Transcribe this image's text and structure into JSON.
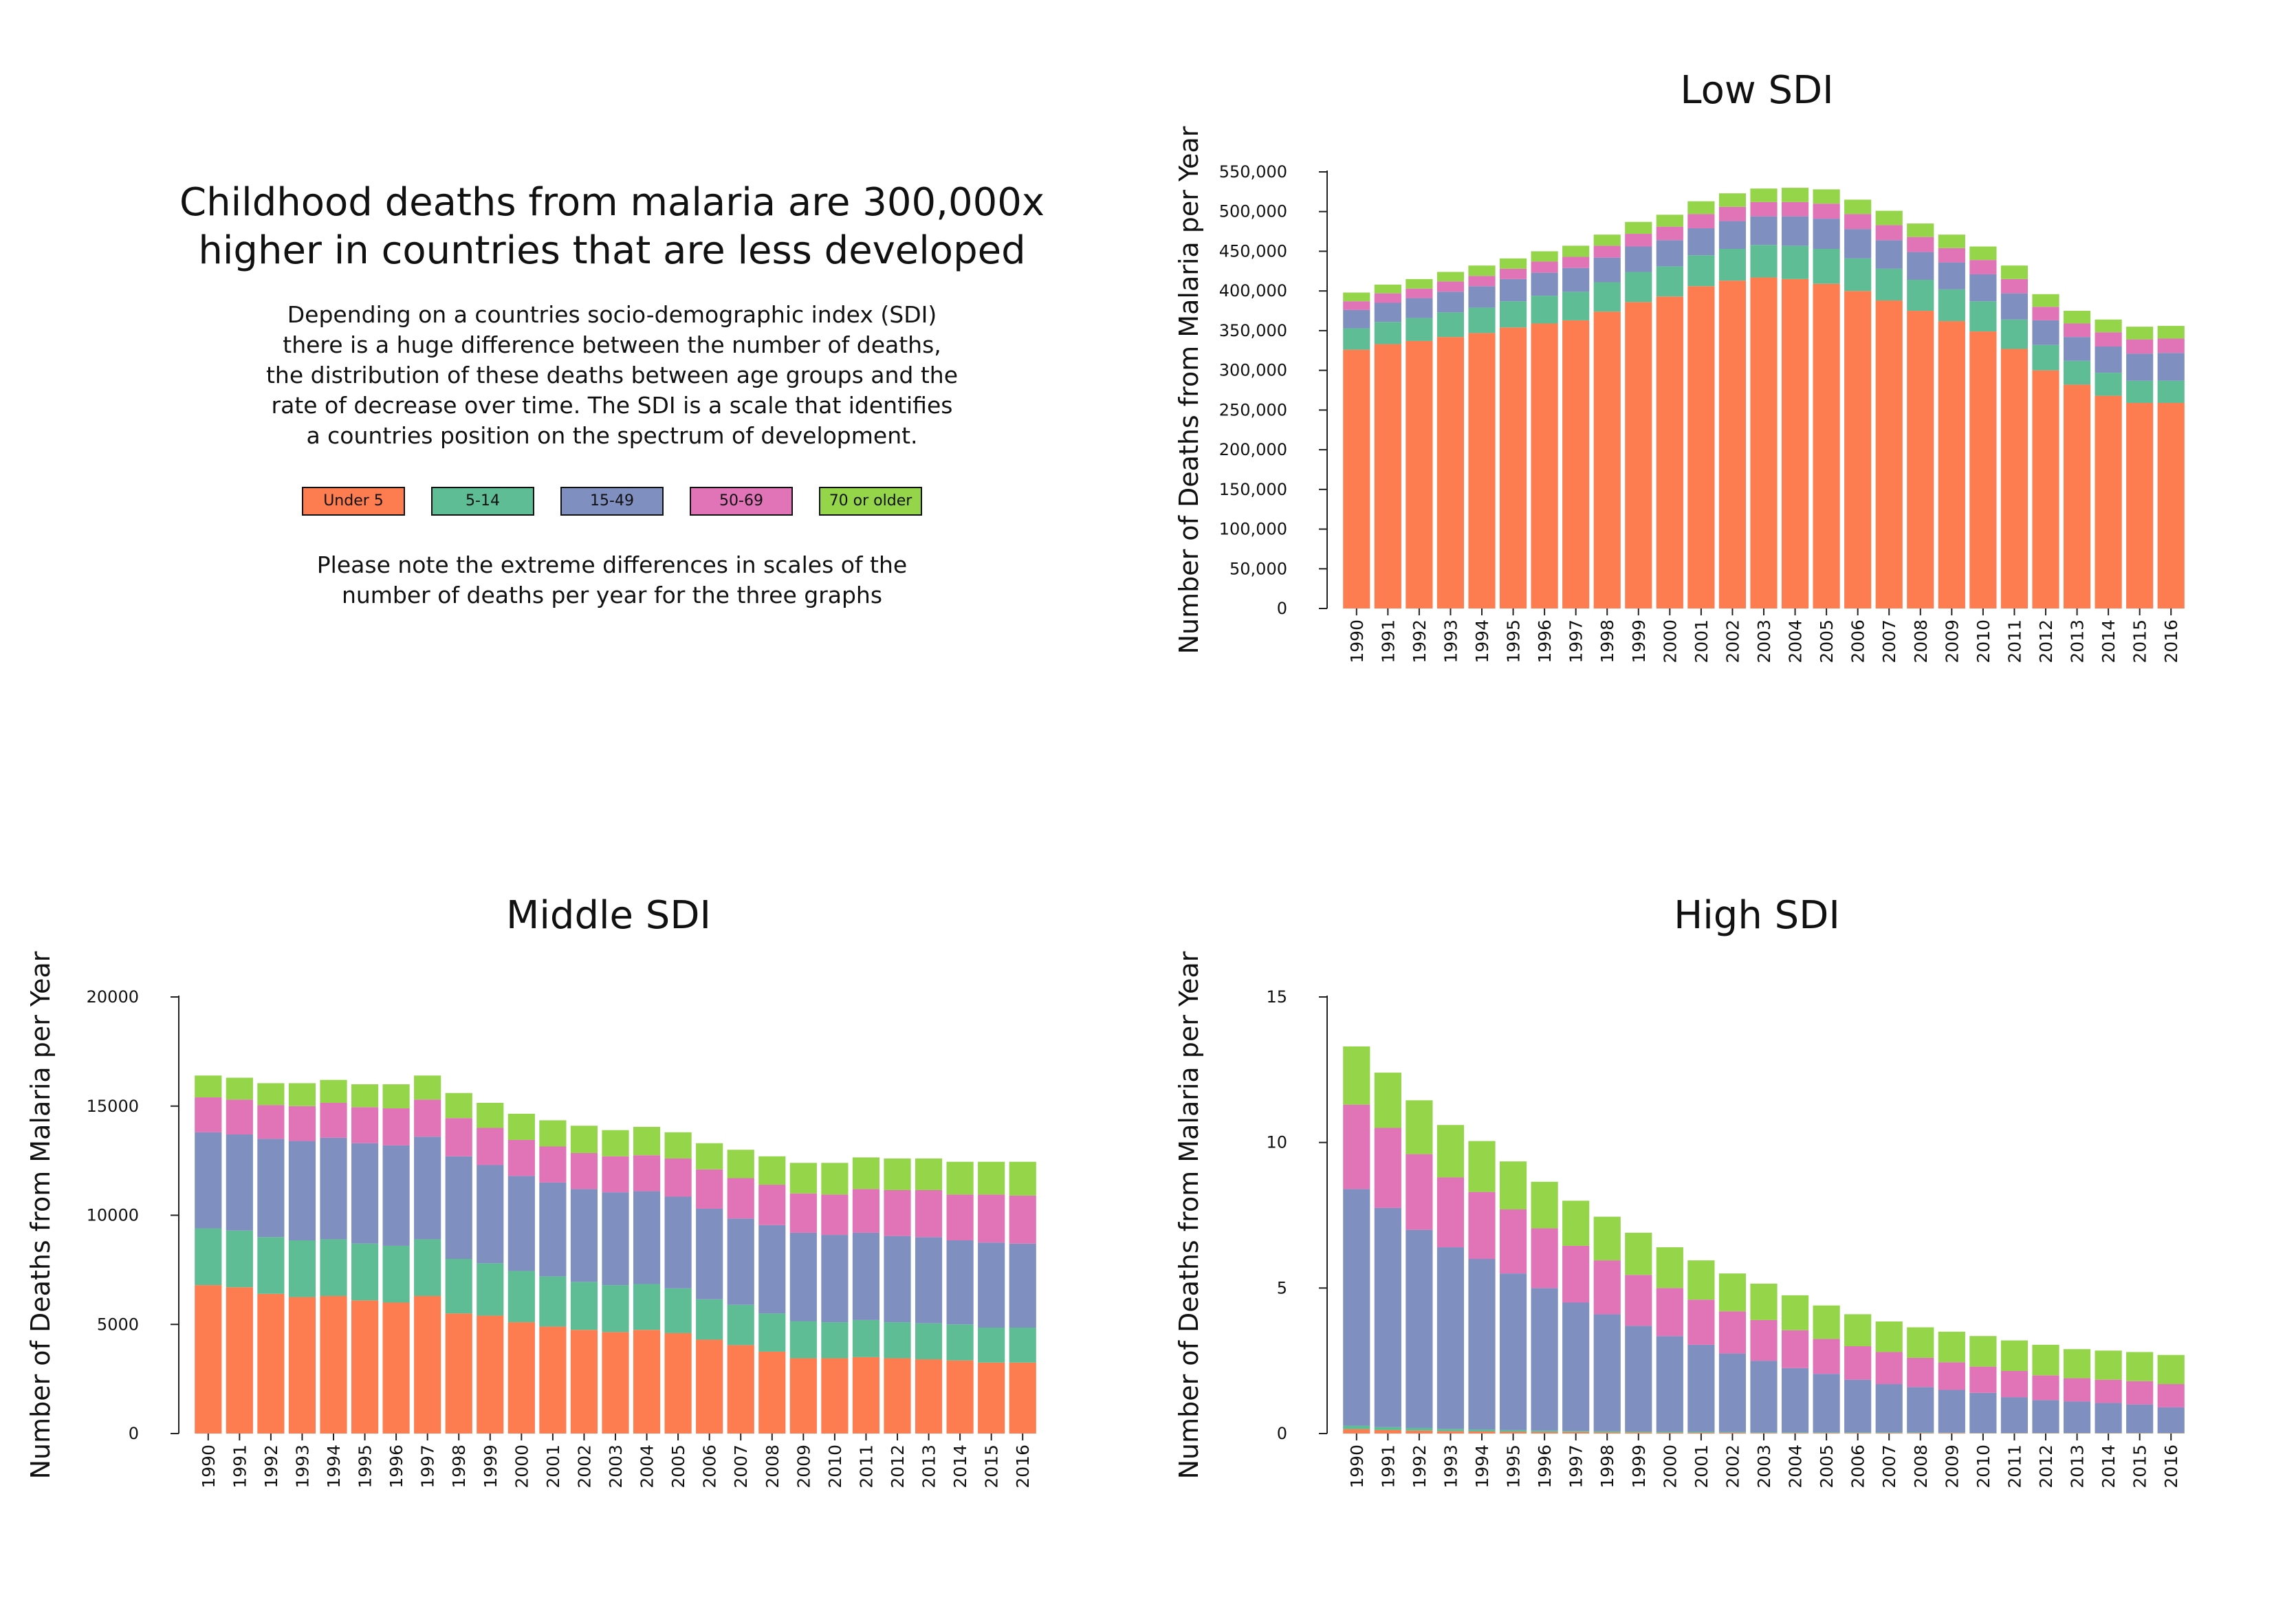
{
  "intro": {
    "title_line1": "Childhood deaths from malaria are 300,000x",
    "title_line2": "higher in countries that are less developed",
    "desc_lines": [
      "Depending on a countries socio-demographic index (SDI)",
      "there is a huge difference between the number of deaths,",
      "the distribution of these deaths between age groups and the",
      "rate of decrease over time. The SDI is a scale that identifies",
      "a countries position on the spectrum of development."
    ],
    "note_lines": [
      "Please note the extreme differences in scales of the",
      "number of deaths per year for the three graphs"
    ]
  },
  "legend": [
    {
      "label": "Under 5",
      "color": "#fd7d51"
    },
    {
      "label": "5-14",
      "color": "#5ebd94"
    },
    {
      "label": "15-49",
      "color": "#7e8fc0"
    },
    {
      "label": "50-69",
      "color": "#e173b7"
    },
    {
      "label": "70 or older",
      "color": "#94d54a"
    }
  ],
  "chart_data": [
    {
      "type": "bar",
      "stacked": true,
      "title": "Low SDI",
      "ylabel": "Number of Deaths from Malaria per Year",
      "ylim": [
        0,
        550000
      ],
      "yticks": [
        0,
        50000,
        100000,
        150000,
        200000,
        250000,
        300000,
        350000,
        400000,
        450000,
        500000,
        550000
      ],
      "ytick_labels": [
        "0",
        "50,000",
        "100,000",
        "150,000",
        "200,000",
        "250,000",
        "300,000",
        "350,000",
        "400,000",
        "450,000",
        "500,000",
        "550,000"
      ],
      "categories": [
        "1990",
        "1991",
        "1992",
        "1993",
        "1994",
        "1995",
        "1996",
        "1997",
        "1998",
        "1999",
        "2000",
        "2001",
        "2002",
        "2003",
        "2004",
        "2005",
        "2006",
        "2007",
        "2008",
        "2009",
        "2010",
        "2011",
        "2012",
        "2013",
        "2014",
        "2015",
        "2016"
      ],
      "series": [
        {
          "name": "Under 5",
          "values": [
            326000,
            333000,
            337000,
            342000,
            347000,
            354000,
            359000,
            363000,
            374000,
            386000,
            393000,
            406000,
            413000,
            417000,
            415000,
            409000,
            400000,
            388000,
            375000,
            362000,
            349000,
            327000,
            300000,
            282000,
            268000,
            259000,
            259000
          ]
        },
        {
          "name": "5-14",
          "values": [
            27000,
            28000,
            29000,
            31000,
            32000,
            33000,
            35000,
            36000,
            37000,
            38000,
            38000,
            39000,
            40000,
            41000,
            42000,
            44000,
            41000,
            40000,
            39000,
            40000,
            38000,
            37000,
            32000,
            30000,
            29000,
            28000,
            28000
          ]
        },
        {
          "name": "15-49",
          "values": [
            23000,
            24000,
            25000,
            26000,
            27000,
            28000,
            29000,
            30000,
            31000,
            32000,
            33000,
            34000,
            35000,
            36000,
            37000,
            38000,
            37000,
            36000,
            35000,
            34000,
            34000,
            33000,
            31000,
            30000,
            33000,
            34000,
            35000
          ]
        },
        {
          "name": "50-69",
          "values": [
            11000,
            12000,
            12000,
            13000,
            13000,
            13000,
            14000,
            14000,
            15000,
            16000,
            17000,
            18000,
            18000,
            18000,
            18000,
            19000,
            19000,
            19000,
            19000,
            18000,
            18000,
            18000,
            17000,
            17000,
            18000,
            18000,
            18000
          ]
        },
        {
          "name": "70 or older",
          "values": [
            11000,
            11000,
            12000,
            12000,
            13000,
            13000,
            13000,
            14000,
            14000,
            15000,
            15000,
            16000,
            17000,
            17000,
            18000,
            18000,
            18000,
            18000,
            17000,
            17000,
            17000,
            17000,
            16000,
            16000,
            16000,
            16000,
            16000
          ]
        }
      ]
    },
    {
      "type": "bar",
      "stacked": true,
      "title": "Middle SDI",
      "ylabel": "Number of Deaths from Malaria per Year",
      "ylim": [
        0,
        20000
      ],
      "yticks": [
        0,
        5000,
        10000,
        15000,
        20000
      ],
      "ytick_labels": [
        "0",
        "5000",
        "10000",
        "15000",
        "20000"
      ],
      "categories": [
        "1990",
        "1991",
        "1992",
        "1993",
        "1994",
        "1995",
        "1996",
        "1997",
        "1998",
        "1999",
        "2000",
        "2001",
        "2002",
        "2003",
        "2004",
        "2005",
        "2006",
        "2007",
        "2008",
        "2009",
        "2010",
        "2011",
        "2012",
        "2013",
        "2014",
        "2015",
        "2016"
      ],
      "series": [
        {
          "name": "Under 5",
          "values": [
            6800,
            6700,
            6400,
            6250,
            6300,
            6100,
            6000,
            6300,
            5500,
            5400,
            5100,
            4900,
            4750,
            4650,
            4750,
            4600,
            4300,
            4050,
            3750,
            3450,
            3450,
            3500,
            3450,
            3400,
            3350,
            3250,
            3250
          ]
        },
        {
          "name": "5-14",
          "values": [
            2600,
            2600,
            2600,
            2600,
            2600,
            2600,
            2600,
            2600,
            2500,
            2400,
            2350,
            2300,
            2200,
            2150,
            2100,
            2050,
            1850,
            1850,
            1750,
            1700,
            1650,
            1700,
            1650,
            1650,
            1650,
            1600,
            1600
          ]
        },
        {
          "name": "15-49",
          "values": [
            4400,
            4400,
            4500,
            4550,
            4650,
            4600,
            4600,
            4700,
            4700,
            4500,
            4350,
            4300,
            4250,
            4250,
            4250,
            4200,
            4150,
            3950,
            4050,
            4050,
            4000,
            4000,
            3950,
            3950,
            3850,
            3900,
            3850
          ]
        },
        {
          "name": "50-69",
          "values": [
            1600,
            1600,
            1550,
            1600,
            1600,
            1650,
            1700,
            1700,
            1750,
            1700,
            1650,
            1650,
            1650,
            1650,
            1650,
            1750,
            1800,
            1850,
            1850,
            1800,
            1850,
            2000,
            2100,
            2150,
            2100,
            2200,
            2200
          ]
        },
        {
          "name": "70 or older",
          "values": [
            1000,
            1000,
            1000,
            1050,
            1050,
            1050,
            1100,
            1100,
            1150,
            1150,
            1200,
            1200,
            1250,
            1200,
            1300,
            1200,
            1200,
            1300,
            1300,
            1400,
            1450,
            1450,
            1450,
            1450,
            1500,
            1500,
            1550
          ]
        }
      ]
    },
    {
      "type": "bar",
      "stacked": true,
      "title": "High SDI",
      "ylabel": "Number of Deaths from Malaria per Year",
      "ylim": [
        0,
        15
      ],
      "yticks": [
        0,
        5,
        10,
        15
      ],
      "ytick_labels": [
        "0",
        "5",
        "10",
        "15"
      ],
      "categories": [
        "1990",
        "1991",
        "1992",
        "1993",
        "1994",
        "1995",
        "1996",
        "1997",
        "1998",
        "1999",
        "2000",
        "2001",
        "2002",
        "2003",
        "2004",
        "2005",
        "2006",
        "2007",
        "2008",
        "2009",
        "2010",
        "2011",
        "2012",
        "2013",
        "2014",
        "2015",
        "2016"
      ],
      "series": [
        {
          "name": "Under 5",
          "values": [
            0.15,
            0.12,
            0.1,
            0.08,
            0.07,
            0.06,
            0.05,
            0.05,
            0.04,
            0.04,
            0.03,
            0.03,
            0.03,
            0.02,
            0.02,
            0.02,
            0.02,
            0.02,
            0.02,
            0.02,
            0.01,
            0.01,
            0.01,
            0.01,
            0.01,
            0.01,
            0.01
          ]
        },
        {
          "name": "5-14",
          "values": [
            0.12,
            0.1,
            0.09,
            0.08,
            0.07,
            0.06,
            0.05,
            0.04,
            0.04,
            0.03,
            0.03,
            0.03,
            0.02,
            0.02,
            0.02,
            0.02,
            0.02,
            0.02,
            0.02,
            0.01,
            0.01,
            0.01,
            0.01,
            0.01,
            0.01,
            0.01,
            0.01
          ]
        },
        {
          "name": "15-49",
          "values": [
            8.13,
            7.53,
            6.81,
            6.24,
            5.86,
            5.38,
            4.9,
            4.41,
            4.02,
            3.63,
            3.29,
            2.99,
            2.7,
            2.46,
            2.21,
            2.01,
            1.81,
            1.66,
            1.56,
            1.47,
            1.38,
            1.23,
            1.13,
            1.08,
            1.03,
            0.98,
            0.88
          ]
        },
        {
          "name": "50-69",
          "values": [
            2.9,
            2.75,
            2.6,
            2.4,
            2.3,
            2.2,
            2.05,
            1.95,
            1.85,
            1.75,
            1.65,
            1.55,
            1.45,
            1.4,
            1.3,
            1.2,
            1.15,
            1.1,
            1.0,
            0.95,
            0.9,
            0.9,
            0.85,
            0.8,
            0.8,
            0.8,
            0.8
          ]
        },
        {
          "name": "70 or older",
          "values": [
            2.0,
            1.9,
            1.85,
            1.8,
            1.75,
            1.65,
            1.6,
            1.55,
            1.5,
            1.45,
            1.4,
            1.35,
            1.3,
            1.25,
            1.2,
            1.15,
            1.1,
            1.05,
            1.05,
            1.05,
            1.05,
            1.05,
            1.05,
            1.0,
            1.0,
            1.0,
            1.0
          ]
        }
      ]
    }
  ]
}
